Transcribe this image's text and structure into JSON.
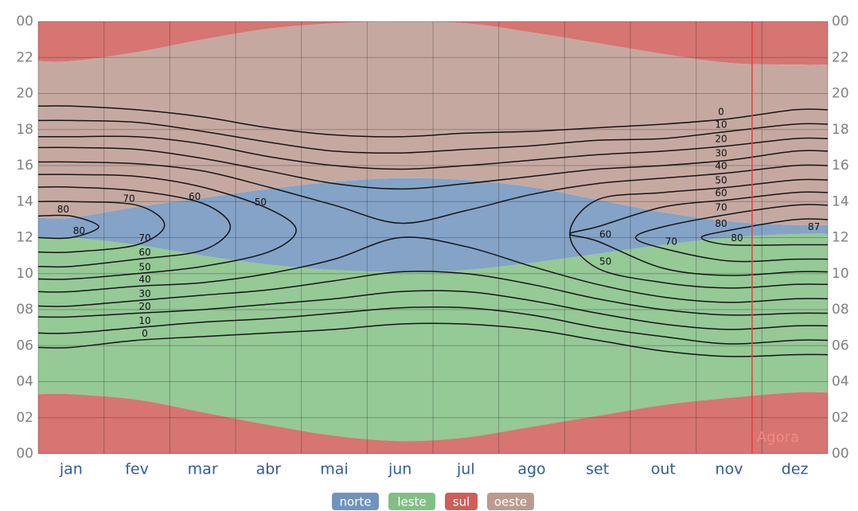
{
  "chart_data": {
    "type": "contour",
    "categories": [
      "jan",
      "fev",
      "mar",
      "abr",
      "mai",
      "jun",
      "jul",
      "ago",
      "set",
      "out",
      "nov",
      "dez"
    ],
    "ylim": [
      0,
      24
    ],
    "yticks": [
      {
        "value": 0,
        "label": "00"
      },
      {
        "value": 2,
        "label": "02"
      },
      {
        "value": 4,
        "label": "04"
      },
      {
        "value": 6,
        "label": "06"
      },
      {
        "value": 8,
        "label": "08"
      },
      10,
      12,
      14,
      16,
      18,
      20,
      22,
      {
        "value": 24,
        "label": "00"
      }
    ],
    "grid": true,
    "series": [
      {
        "name": "norte",
        "color": "#6f93bd",
        "bands": [
          {
            "low": [
              12.0,
              11.6,
              11.0,
              10.5,
              10.2,
              10.1,
              10.2,
              10.6,
              11.1,
              11.6,
              12.0,
              12.2
            ],
            "high": [
              13.1,
              13.7,
              14.2,
              14.7,
              15.1,
              15.3,
              15.2,
              14.8,
              14.1,
              13.4,
              12.9,
              12.7
            ]
          }
        ]
      },
      {
        "name": "leste",
        "color": "#82bf84",
        "bands": [
          {
            "low": [
              3.3,
              3.0,
              2.3,
              1.6,
              1.0,
              0.7,
              0.9,
              1.5,
              2.1,
              2.7,
              3.1,
              3.4
            ],
            "high": [
              12.0,
              11.6,
              11.0,
              10.5,
              10.2,
              10.1,
              10.2,
              10.6,
              11.1,
              11.6,
              12.0,
              12.2
            ]
          }
        ]
      },
      {
        "name": "sul",
        "color": "#cf5d58",
        "bands": [
          {
            "low": [
              0,
              0,
              0,
              0,
              0,
              0,
              0,
              0,
              0,
              0,
              0,
              0
            ],
            "high": [
              3.3,
              3.0,
              2.3,
              1.6,
              1.0,
              0.7,
              0.9,
              1.5,
              2.1,
              2.7,
              3.1,
              3.4
            ]
          },
          {
            "low": [
              21.8,
              22.3,
              23.0,
              23.6,
              23.9,
              24,
              23.9,
              23.4,
              22.8,
              22.2,
              21.7,
              21.6
            ],
            "high": [
              24,
              24,
              24,
              24,
              24,
              24,
              24,
              24,
              24,
              24,
              24,
              24
            ]
          }
        ]
      },
      {
        "name": "oeste",
        "color": "#bb9a90",
        "bands": [
          {
            "low": [
              13.1,
              13.7,
              14.2,
              14.7,
              15.1,
              15.3,
              15.2,
              14.8,
              14.1,
              13.4,
              12.9,
              12.7
            ],
            "high": [
              21.8,
              22.3,
              23.0,
              23.6,
              23.9,
              24,
              23.9,
              23.4,
              22.8,
              22.2,
              21.7,
              21.6
            ]
          }
        ]
      }
    ],
    "contours": {
      "color": "#151515",
      "noon": [
        12.6,
        12.7,
        12.6,
        12.4,
        12.3,
        12.4,
        12.5,
        12.4,
        12.2,
        12.0,
        12.0,
        12.3
      ],
      "levels": [
        {
          "level": 0,
          "half_day": [
            6.7,
            6.4,
            6.1,
            5.7,
            5.4,
            5.2,
            5.3,
            5.5,
            5.9,
            6.3,
            6.6,
            6.8
          ]
        },
        {
          "level": 10,
          "half_day": [
            5.9,
            5.7,
            5.3,
            4.9,
            4.5,
            4.3,
            4.4,
            4.7,
            5.2,
            5.5,
            5.9,
            6.0
          ]
        },
        {
          "level": 20,
          "half_day": [
            5.0,
            4.9,
            4.6,
            4.1,
            3.7,
            3.4,
            3.5,
            3.9,
            4.4,
            4.8,
            5.1,
            5.2
          ]
        },
        {
          "level": 30,
          "half_day": [
            4.4,
            4.2,
            3.8,
            3.3,
            2.7,
            2.3,
            2.5,
            3.0,
            3.6,
            4.0,
            4.3,
            4.5
          ]
        },
        {
          "level": 40,
          "half_day": [
            3.6,
            3.4,
            3.1,
            2.4,
            1.5,
            0.4,
            1.0,
            2.0,
            2.8,
            3.3,
            3.6,
            3.7
          ]
        },
        {
          "level": 50,
          "half_day": [
            2.9,
            2.7,
            2.2,
            1.2,
            null,
            null,
            null,
            null,
            1.9,
            2.5,
            2.8,
            2.9
          ]
        },
        {
          "level": 60,
          "half_day": [
            2.2,
            1.9,
            1.3,
            null,
            null,
            null,
            null,
            null,
            0.4,
            1.7,
            2.1,
            2.2
          ]
        },
        {
          "level": 70,
          "half_day": [
            1.4,
            1.1,
            null,
            null,
            null,
            null,
            null,
            null,
            null,
            0.6,
            1.3,
            1.5
          ]
        },
        {
          "level": 80,
          "half_day": [
            0.6,
            null,
            null,
            null,
            null,
            null,
            null,
            null,
            null,
            null,
            0.4,
            0.7
          ]
        }
      ]
    },
    "max_elevation": 87,
    "annotation": {
      "text": "Agora",
      "x": 10.85
    }
  }
}
